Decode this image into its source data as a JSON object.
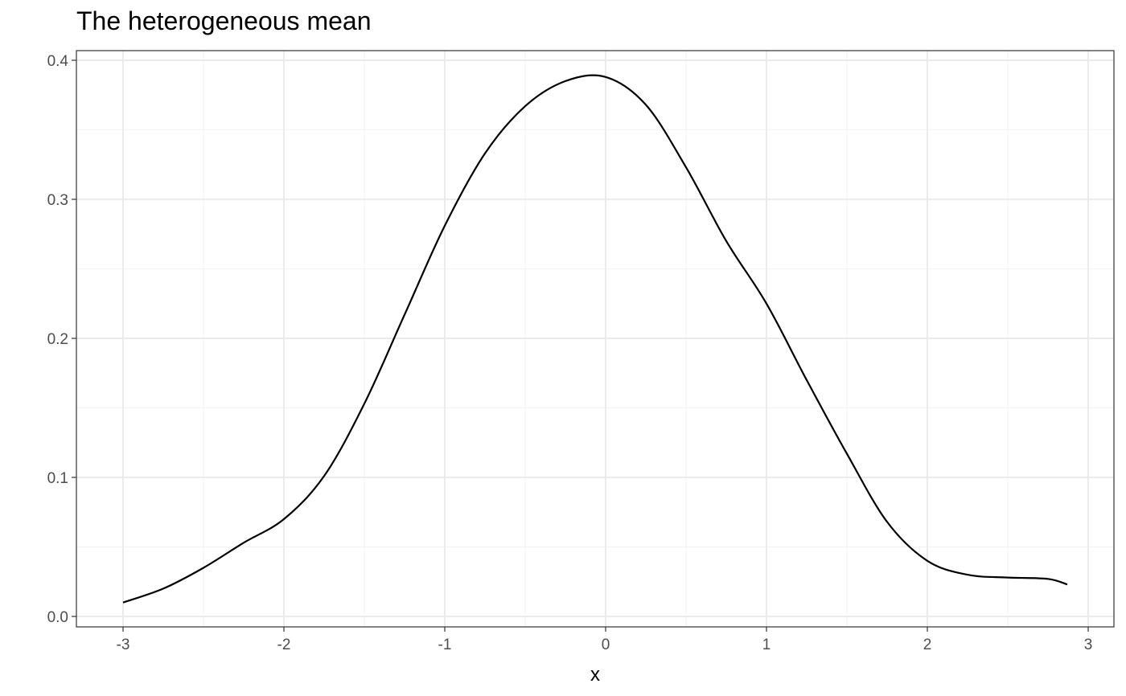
{
  "chart_data": {
    "type": "line",
    "title": "The heterogeneous mean",
    "xlabel": "x",
    "ylabel": "",
    "xlim": [
      -3.0,
      2.87
    ],
    "ylim": [
      0.0,
      0.4
    ],
    "x_ticks": [
      -3,
      -2,
      -1,
      0,
      1,
      2,
      3
    ],
    "y_ticks": [
      0.0,
      0.1,
      0.2,
      0.3,
      0.4
    ],
    "x_tick_labels": [
      "-3",
      "-2",
      "-1",
      "0",
      "1",
      "2",
      "3"
    ],
    "y_tick_labels": [
      "0.0",
      "0.1",
      "0.2",
      "0.3",
      "0.4"
    ],
    "grid": true,
    "series": [
      {
        "color": "#000000",
        "x": [
          -3.0,
          -2.75,
          -2.5,
          -2.25,
          -2.0,
          -1.75,
          -1.5,
          -1.25,
          -1.0,
          -0.75,
          -0.5,
          -0.25,
          0.0,
          0.25,
          0.5,
          0.75,
          1.0,
          1.25,
          1.5,
          1.75,
          2.0,
          2.25,
          2.5,
          2.75,
          2.87
        ],
        "y": [
          0.01,
          0.02,
          0.035,
          0.053,
          0.07,
          0.101,
          0.153,
          0.217,
          0.281,
          0.333,
          0.367,
          0.385,
          0.388,
          0.368,
          0.323,
          0.27,
          0.225,
          0.17,
          0.117,
          0.068,
          0.04,
          0.03,
          0.028,
          0.027,
          0.023
        ]
      }
    ]
  }
}
